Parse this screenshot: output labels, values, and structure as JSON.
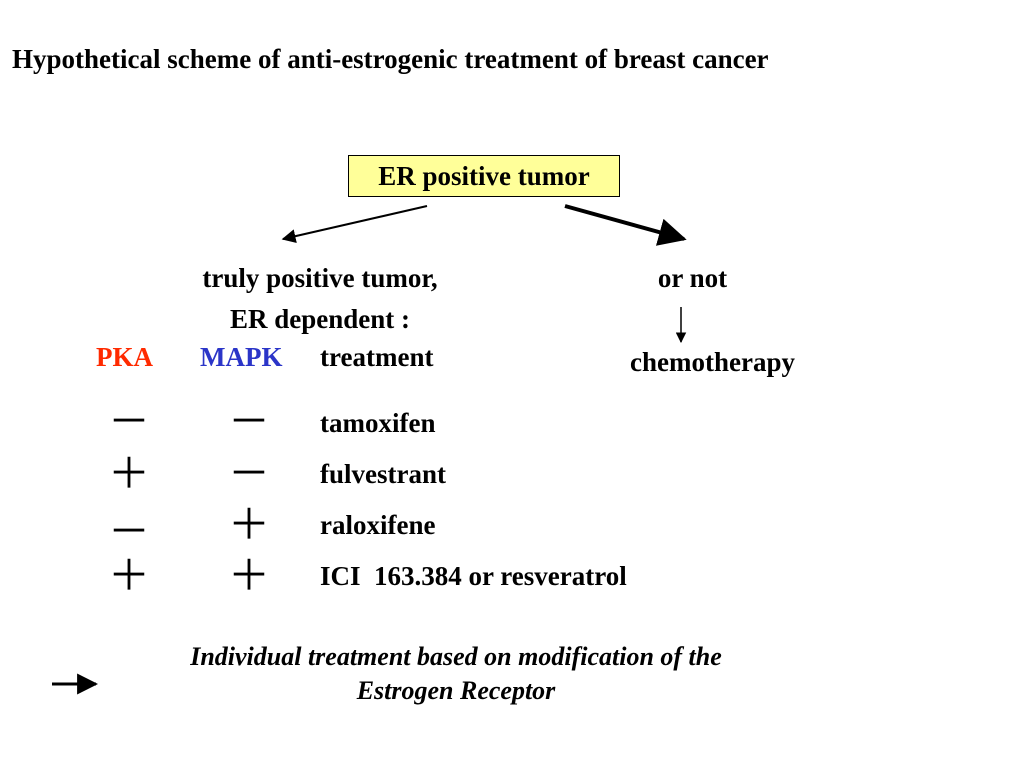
{
  "title": "Hypothetical scheme of anti-estrogenic treatment of breast cancer",
  "root_node": "ER positive tumor",
  "left_branch": {
    "line1": "truly positive tumor,",
    "line2": "ER dependent :"
  },
  "right_branch": {
    "label": "or not",
    "outcome": "chemotherapy"
  },
  "table": {
    "headers": {
      "pka": "PKA",
      "mapk": "MAPK",
      "treatment": "treatment"
    },
    "rows": [
      {
        "pka": "－",
        "mapk": "－",
        "treatment": "tamoxifen"
      },
      {
        "pka": "＋",
        "mapk": "－",
        "treatment": "fulvestrant"
      },
      {
        "pka": "－",
        "mapk": "＋",
        "treatment": "raloxifene"
      },
      {
        "pka": "＋",
        "mapk": "＋",
        "treatment": "ICI  163.384 or resveratrol"
      }
    ]
  },
  "footer": {
    "line1": "Individual treatment based on modification of the",
    "line2": "Estrogen Receptor"
  },
  "colors": {
    "root_fill": "#ffff99",
    "pka": "#ff2a00",
    "mapk": "#2b35c8"
  }
}
